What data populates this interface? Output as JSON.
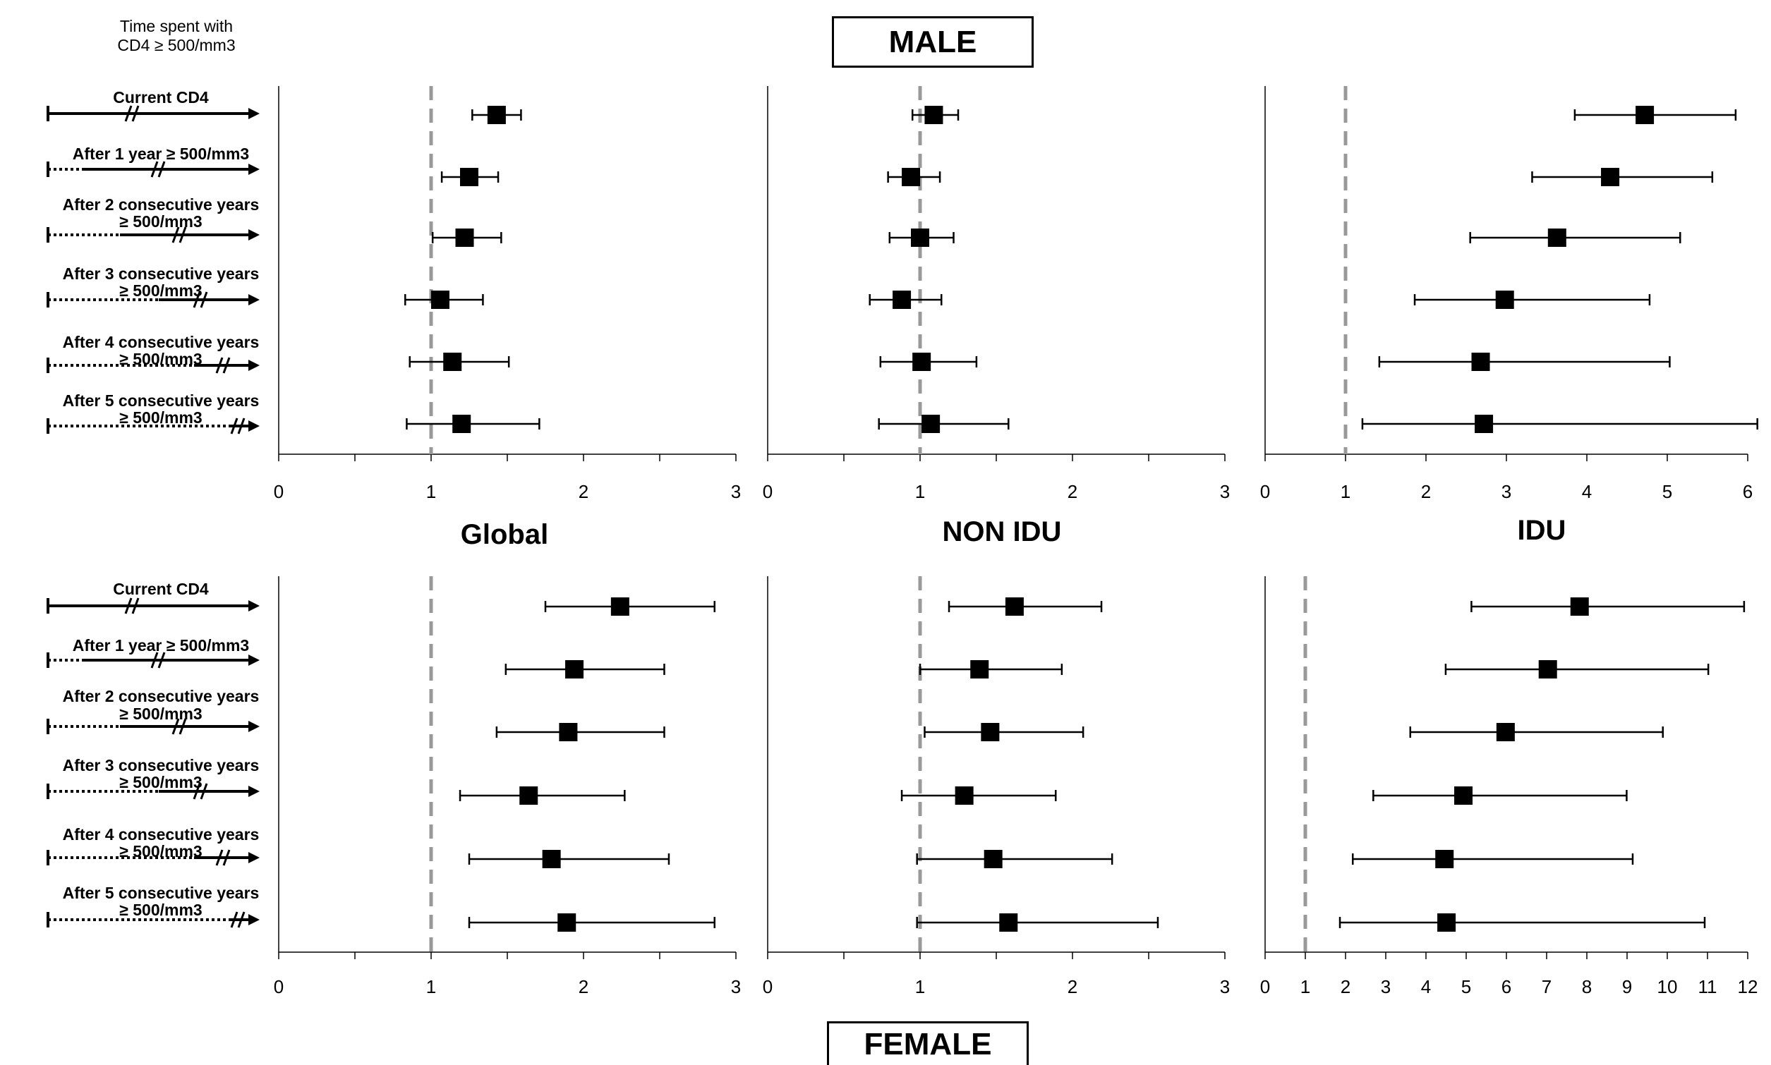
{
  "header": {
    "legend_title_line1": "Time spent with",
    "legend_title_line2": "CD4 ≥ 500/mm3",
    "top_title": "MALE",
    "bottom_title": "FEMALE"
  },
  "row_labels": [
    {
      "line1": "Current CD4",
      "line2": ""
    },
    {
      "line1": "After 1 year ≥ 500/mm3",
      "line2": ""
    },
    {
      "line1": "After 2 consecutive years",
      "line2": "≥ 500/mm3"
    },
    {
      "line1": "After 3 consecutive years",
      "line2": "≥ 500/mm3"
    },
    {
      "line1": "After 4 consecutive years",
      "line2": "≥ 500/mm3"
    },
    {
      "line1": "After 5 consecutive years",
      "line2": "≥ 500/mm3"
    }
  ],
  "panel_labels": [
    "Global",
    "NON IDU",
    "IDU"
  ],
  "colors": {
    "marker": "#000000",
    "reference_line": "#999999",
    "axis": "#000000"
  },
  "chart_data": [
    {
      "type": "scatter",
      "group": "MALE",
      "panel": "Global",
      "reference_x": 1,
      "xlim": [
        0,
        3
      ],
      "xticks": [
        "0",
        "1",
        "2",
        "3"
      ],
      "points": [
        {
          "row": "Current CD4",
          "estimate": 1.43,
          "lower": 1.27,
          "upper": 1.59
        },
        {
          "row": "After 1 year ≥ 500/mm3",
          "estimate": 1.25,
          "lower": 1.07,
          "upper": 1.44
        },
        {
          "row": "After 2 consecutive years ≥ 500/mm3",
          "estimate": 1.22,
          "lower": 1.01,
          "upper": 1.46
        },
        {
          "row": "After 3 consecutive years ≥ 500/mm3",
          "estimate": 1.06,
          "lower": 0.83,
          "upper": 1.34
        },
        {
          "row": "After 4 consecutive years ≥ 500/mm3",
          "estimate": 1.14,
          "lower": 0.86,
          "upper": 1.51
        },
        {
          "row": "After 5 consecutive years ≥ 500/mm3",
          "estimate": 1.2,
          "lower": 0.84,
          "upper": 1.71
        }
      ]
    },
    {
      "type": "scatter",
      "group": "MALE",
      "panel": "NON IDU",
      "reference_x": 1,
      "xlim": [
        0,
        3
      ],
      "xticks": [
        "0",
        "1",
        "2",
        "3"
      ],
      "points": [
        {
          "row": "Current CD4",
          "estimate": 1.09,
          "lower": 0.95,
          "upper": 1.25
        },
        {
          "row": "After 1 year ≥ 500/mm3",
          "estimate": 0.94,
          "lower": 0.79,
          "upper": 1.13
        },
        {
          "row": "After 2 consecutive years ≥ 500/mm3",
          "estimate": 1.0,
          "lower": 0.8,
          "upper": 1.22
        },
        {
          "row": "After 3 consecutive years ≥ 500/mm3",
          "estimate": 0.88,
          "lower": 0.67,
          "upper": 1.14
        },
        {
          "row": "After 4 consecutive years ≥ 500/mm3",
          "estimate": 1.01,
          "lower": 0.74,
          "upper": 1.37
        },
        {
          "row": "After 5 consecutive years ≥ 500/mm3",
          "estimate": 1.07,
          "lower": 0.73,
          "upper": 1.58
        }
      ]
    },
    {
      "type": "scatter",
      "group": "MALE",
      "panel": "IDU",
      "reference_x": 1,
      "xlim": [
        0,
        6
      ],
      "xticks": [
        "0",
        "1",
        "2",
        "3",
        "4",
        "5",
        "6"
      ],
      "points": [
        {
          "row": "Current CD4",
          "estimate": 4.72,
          "lower": 3.85,
          "upper": 5.85
        },
        {
          "row": "After 1 year ≥ 500/mm3",
          "estimate": 4.29,
          "lower": 3.32,
          "upper": 5.56
        },
        {
          "row": "After 2 consecutive years ≥ 500/mm3",
          "estimate": 3.63,
          "lower": 2.55,
          "upper": 5.16
        },
        {
          "row": "After 3 consecutive years ≥ 500/mm3",
          "estimate": 2.98,
          "lower": 1.86,
          "upper": 4.78
        },
        {
          "row": "After 4 consecutive years ≥ 500/mm3",
          "estimate": 2.68,
          "lower": 1.42,
          "upper": 5.03
        },
        {
          "row": "After 5 consecutive years ≥ 500/mm3",
          "estimate": 2.72,
          "lower": 1.21,
          "upper": 6.13
        }
      ]
    },
    {
      "type": "scatter",
      "group": "FEMALE",
      "panel": "Global",
      "reference_x": 1,
      "xlim": [
        0,
        3
      ],
      "xticks": [
        "0",
        "1",
        "2",
        "3"
      ],
      "points": [
        {
          "row": "Current CD4",
          "estimate": 2.24,
          "lower": 1.75,
          "upper": 2.86
        },
        {
          "row": "After 1 year ≥ 500/mm3",
          "estimate": 1.94,
          "lower": 1.49,
          "upper": 2.53
        },
        {
          "row": "After 2 consecutive years ≥ 500/mm3",
          "estimate": 1.9,
          "lower": 1.43,
          "upper": 2.53
        },
        {
          "row": "After 3 consecutive years ≥ 500/mm3",
          "estimate": 1.64,
          "lower": 1.19,
          "upper": 2.27
        },
        {
          "row": "After 4 consecutive years ≥ 500/mm3",
          "estimate": 1.79,
          "lower": 1.25,
          "upper": 2.56
        },
        {
          "row": "After 5 consecutive years ≥ 500/mm3",
          "estimate": 1.89,
          "lower": 1.25,
          "upper": 2.86
        }
      ]
    },
    {
      "type": "scatter",
      "group": "FEMALE",
      "panel": "NON IDU",
      "reference_x": 1,
      "xlim": [
        0,
        3
      ],
      "xticks": [
        "0",
        "1",
        "2",
        "3"
      ],
      "points": [
        {
          "row": "Current CD4",
          "estimate": 1.62,
          "lower": 1.19,
          "upper": 2.19
        },
        {
          "row": "After 1 year ≥ 500/mm3",
          "estimate": 1.39,
          "lower": 1.0,
          "upper": 1.93
        },
        {
          "row": "After 2 consecutive years ≥ 500/mm3",
          "estimate": 1.46,
          "lower": 1.03,
          "upper": 2.07
        },
        {
          "row": "After 3 consecutive years ≥ 500/mm3",
          "estimate": 1.29,
          "lower": 0.88,
          "upper": 1.89
        },
        {
          "row": "After 4 consecutive years ≥ 500/mm3",
          "estimate": 1.48,
          "lower": 0.98,
          "upper": 2.26
        },
        {
          "row": "After 5 consecutive years ≥ 500/mm3",
          "estimate": 1.58,
          "lower": 0.98,
          "upper": 2.56
        }
      ]
    },
    {
      "type": "scatter",
      "group": "FEMALE",
      "panel": "IDU",
      "reference_x": 1,
      "xlim": [
        0,
        12
      ],
      "xticks": [
        "0",
        "1",
        "2",
        "3",
        "4",
        "5",
        "6",
        "7",
        "8",
        "9",
        "10",
        "11",
        "12"
      ],
      "points": [
        {
          "row": "Current CD4",
          "estimate": 7.82,
          "lower": 5.13,
          "upper": 11.91
        },
        {
          "row": "After 1 year ≥ 500/mm3",
          "estimate": 7.03,
          "lower": 4.49,
          "upper": 11.02
        },
        {
          "row": "After 2 consecutive years ≥ 500/mm3",
          "estimate": 5.98,
          "lower": 3.61,
          "upper": 9.89
        },
        {
          "row": "After 3 consecutive years ≥ 500/mm3",
          "estimate": 4.93,
          "lower": 2.69,
          "upper": 8.99
        },
        {
          "row": "After 4 consecutive years ≥ 500/mm3",
          "estimate": 4.46,
          "lower": 2.18,
          "upper": 9.14
        },
        {
          "row": "After 5 consecutive years ≥ 500/mm3",
          "estimate": 4.51,
          "lower": 1.86,
          "upper": 10.93
        }
      ]
    }
  ]
}
